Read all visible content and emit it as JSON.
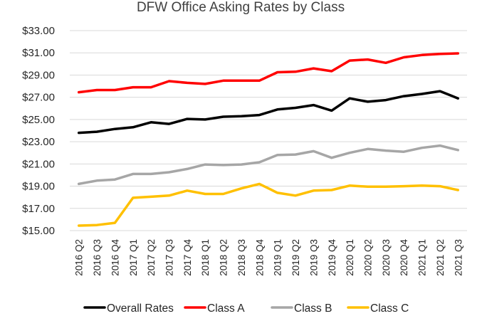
{
  "chart_data": {
    "type": "line",
    "title": "DFW Office Asking Rates by Class",
    "xlabel": "",
    "ylabel": "",
    "categories": [
      "2016 Q2",
      "2016 Q3",
      "2016 Q4",
      "2017 Q1",
      "2017 Q2",
      "2017 Q3",
      "2017 Q4",
      "2018 Q1",
      "2018 Q2",
      "2018 Q3",
      "2018 Q4",
      "2019 Q1",
      "2019 Q2",
      "2019 Q3",
      "2019 Q4",
      "2020 Q1",
      "2020 Q2",
      "2020 Q3",
      "2020 Q4",
      "2021 Q1",
      "2021 Q2",
      "2021 Q3"
    ],
    "ylim": [
      15,
      33
    ],
    "yticks": [
      "$15.00",
      "$17.00",
      "$19.00",
      "$21.00",
      "$23.00",
      "$25.00",
      "$27.00",
      "$29.00",
      "$31.00",
      "$33.00"
    ],
    "ytick_values": [
      15,
      17,
      19,
      21,
      23,
      25,
      27,
      29,
      31,
      33
    ],
    "grid": true,
    "legend_position": "bottom",
    "series": [
      {
        "name": "Overall Rates",
        "color": "#000000",
        "values": [
          23.8,
          23.9,
          24.15,
          24.3,
          24.75,
          24.6,
          25.05,
          25.0,
          25.25,
          25.3,
          25.4,
          25.9,
          26.05,
          26.3,
          25.8,
          26.9,
          26.6,
          26.75,
          27.1,
          27.3,
          27.55,
          26.9
        ]
      },
      {
        "name": "Class A",
        "color": "#ff0000",
        "values": [
          27.45,
          27.65,
          27.65,
          27.9,
          27.9,
          28.45,
          28.3,
          28.2,
          28.5,
          28.5,
          28.5,
          29.25,
          29.3,
          29.6,
          29.35,
          30.3,
          30.4,
          30.1,
          30.6,
          30.8,
          30.9,
          30.95
        ]
      },
      {
        "name": "Class B",
        "color": "#a6a6a6",
        "values": [
          19.2,
          19.5,
          19.6,
          20.1,
          20.1,
          20.25,
          20.55,
          20.95,
          20.9,
          20.95,
          21.15,
          21.8,
          21.85,
          22.15,
          21.55,
          22.0,
          22.35,
          22.2,
          22.1,
          22.45,
          22.65,
          22.25
        ]
      },
      {
        "name": "Class C",
        "color": "#ffc000",
        "values": [
          15.45,
          15.5,
          15.7,
          17.95,
          18.05,
          18.15,
          18.6,
          18.3,
          18.3,
          18.8,
          19.2,
          18.4,
          18.15,
          18.6,
          18.65,
          19.05,
          18.95,
          18.95,
          19.0,
          19.05,
          19.0,
          18.65
        ]
      }
    ]
  }
}
